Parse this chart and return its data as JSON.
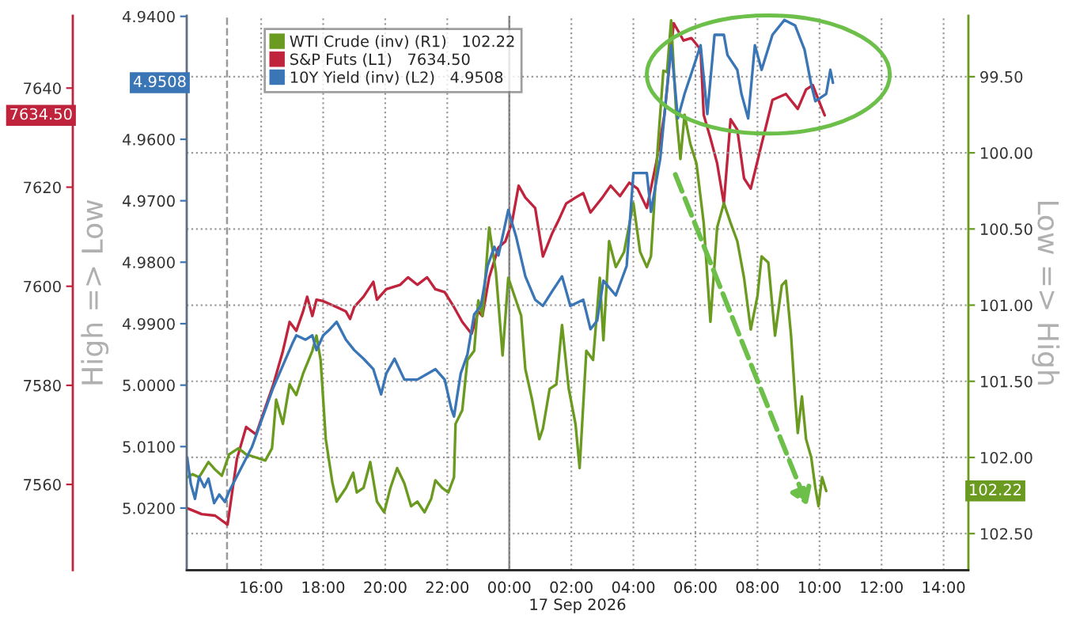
{
  "chart_data": {
    "type": "line",
    "xlabel": "17 Sep 2026",
    "y2label": "Low => High",
    "y3label": "High => Low",
    "xlim": [
      "2026-09-16T13:36",
      "2026-09-17T14:48"
    ],
    "xticks": [
      {
        "value": "2026-09-16T16:00",
        "label": "16:00"
      },
      {
        "value": "2026-09-16T18:00",
        "label": "18:00"
      },
      {
        "value": "2026-09-16T20:00",
        "label": "20:00"
      },
      {
        "value": "2026-09-16T22:00",
        "label": "22:00"
      },
      {
        "value": "2026-09-17T00:00",
        "label": "00:00"
      },
      {
        "value": "2026-09-17T02:00",
        "label": "02:00"
      },
      {
        "value": "2026-09-17T04:00",
        "label": "04:00"
      },
      {
        "value": "2026-09-17T06:00",
        "label": "06:00"
      },
      {
        "value": "2026-09-17T08:00",
        "label": "08:00"
      },
      {
        "value": "2026-09-17T10:00",
        "label": "10:00"
      },
      {
        "value": "2026-09-17T12:00",
        "label": "12:00"
      },
      {
        "value": "2026-09-17T14:00",
        "label": "14:00"
      }
    ],
    "ylim": [
      7542.7,
      7654.6
    ],
    "yticks": [
      7560,
      7580,
      7600,
      7620,
      7640
    ],
    "y2lim": [
      102.74,
      99.1
    ],
    "y2ticks": [
      {
        "value": 99.5,
        "label": "99.50"
      },
      {
        "value": 100,
        "label": "100.00"
      },
      {
        "value": 100.5,
        "label": "100.50"
      },
      {
        "value": 101,
        "label": "101.00"
      },
      {
        "value": 101.5,
        "label": "101.50"
      },
      {
        "value": 102,
        "label": "102.00"
      },
      {
        "value": 102.5,
        "label": "102.50"
      }
    ],
    "y3lim": [
      5.0301,
      4.9399
    ],
    "y3ticks": [
      {
        "value": 4.94,
        "label": "4.9400"
      },
      {
        "value": 4.96,
        "label": "4.9600"
      },
      {
        "value": 4.97,
        "label": "4.9700"
      },
      {
        "value": 4.98,
        "label": "4.9800"
      },
      {
        "value": 4.99,
        "label": "4.9900"
      },
      {
        "value": 5.0,
        "label": "5.0000"
      },
      {
        "value": 5.01,
        "label": "5.0100"
      },
      {
        "value": 5.02,
        "label": "5.0200"
      }
    ],
    "grid": true,
    "legend": "top left",
    "annotations": [
      "102.22",
      "7634.50",
      "4.9508"
    ],
    "ref_lines": [
      {
        "axis": "x",
        "value": "2026-09-17T00:00",
        "color": "#808080",
        "line_style": "solid"
      },
      {
        "axis": "x",
        "value": "2026-09-16T14:54",
        "color": "#9a9a9a",
        "line_style": "dashed"
      }
    ],
    "series": [
      {
        "name": "WTI Crude (inv) (R1)   102.22",
        "color": "#6a9a1f",
        "axis": "y2",
        "x": [
          "2026-09-16T13:37",
          "2026-09-16T13:47",
          "2026-09-16T14:00",
          "2026-09-16T14:18",
          "2026-09-16T14:31",
          "2026-09-16T14:44",
          "2026-09-16T14:58",
          "2026-09-16T15:16",
          "2026-09-16T15:31",
          "2026-09-16T15:50",
          "2026-09-16T16:08",
          "2026-09-16T16:21",
          "2026-09-16T16:29",
          "2026-09-16T16:42",
          "2026-09-16T16:55",
          "2026-09-16T17:08",
          "2026-09-16T17:21",
          "2026-09-16T17:39",
          "2026-09-16T17:47",
          "2026-09-16T17:55",
          "2026-09-16T18:05",
          "2026-09-16T18:18",
          "2026-09-16T18:26",
          "2026-09-16T18:44",
          "2026-09-16T18:58",
          "2026-09-16T19:05",
          "2026-09-16T19:18",
          "2026-09-16T19:31",
          "2026-09-16T19:44",
          "2026-09-16T19:58",
          "2026-09-16T20:10",
          "2026-09-16T20:23",
          "2026-09-16T20:37",
          "2026-09-16T20:50",
          "2026-09-16T21:02",
          "2026-09-16T21:16",
          "2026-09-16T21:29",
          "2026-09-16T21:37",
          "2026-09-16T21:50",
          "2026-09-16T22:02",
          "2026-09-16T22:13",
          "2026-09-16T22:16",
          "2026-09-16T22:29",
          "2026-09-16T22:39",
          "2026-09-16T22:52",
          "2026-09-16T23:00",
          "2026-09-16T23:08",
          "2026-09-16T23:21",
          "2026-09-16T23:34",
          "2026-09-16T23:47",
          "2026-09-16T23:58",
          "2026-09-17T00:10",
          "2026-09-17T00:23",
          "2026-09-17T00:31",
          "2026-09-17T00:44",
          "2026-09-17T00:58",
          "2026-09-17T01:05",
          "2026-09-17T01:18",
          "2026-09-17T01:31",
          "2026-09-17T01:42",
          "2026-09-17T01:55",
          "2026-09-17T02:08",
          "2026-09-17T02:16",
          "2026-09-17T02:29",
          "2026-09-17T02:42",
          "2026-09-17T02:55",
          "2026-09-17T03:02",
          "2026-09-17T03:13",
          "2026-09-17T03:26",
          "2026-09-17T03:42",
          "2026-09-17T04:00",
          "2026-09-17T04:13",
          "2026-09-17T04:26",
          "2026-09-17T04:34",
          "2026-09-17T04:47",
          "2026-09-17T04:58",
          "2026-09-17T05:05",
          "2026-09-17T05:13",
          "2026-09-17T05:23",
          "2026-09-17T05:31",
          "2026-09-17T05:39",
          "2026-09-17T05:50",
          "2026-09-17T06:02",
          "2026-09-17T06:16",
          "2026-09-17T06:29",
          "2026-09-17T06:42",
          "2026-09-17T06:55",
          "2026-09-17T07:08",
          "2026-09-17T07:21",
          "2026-09-17T07:34",
          "2026-09-17T07:47",
          "2026-09-17T08:00",
          "2026-09-17T08:08",
          "2026-09-17T08:21",
          "2026-09-17T08:34",
          "2026-09-17T08:47",
          "2026-09-17T08:55",
          "2026-09-17T09:05",
          "2026-09-17T09:13",
          "2026-09-17T09:18",
          "2026-09-17T09:26",
          "2026-09-17T09:34",
          "2026-09-17T09:44",
          "2026-09-17T09:52",
          "2026-09-17T09:58",
          "2026-09-17T10:05",
          "2026-09-17T10:13"
        ],
        "values": [
          102.13,
          102.11,
          102.13,
          102.03,
          102.08,
          102.12,
          101.98,
          101.94,
          101.98,
          102.0,
          102.02,
          101.94,
          101.62,
          101.78,
          101.52,
          101.59,
          101.45,
          101.3,
          101.2,
          101.36,
          101.88,
          102.17,
          102.29,
          102.2,
          102.1,
          102.23,
          102.2,
          102.03,
          102.29,
          102.36,
          102.2,
          102.07,
          102.17,
          102.32,
          102.29,
          102.36,
          102.27,
          102.15,
          102.2,
          102.23,
          102.13,
          101.78,
          101.69,
          101.36,
          101.3,
          100.97,
          101.07,
          100.49,
          100.78,
          101.33,
          100.82,
          100.94,
          101.07,
          101.42,
          101.62,
          101.88,
          101.81,
          101.55,
          101.52,
          101.13,
          101.55,
          101.78,
          102.07,
          101.3,
          101.36,
          100.82,
          101.23,
          100.58,
          100.75,
          100.65,
          100.33,
          100.65,
          100.75,
          100.68,
          99.97,
          99.46,
          99.47,
          99.13,
          99.75,
          100.04,
          99.75,
          99.94,
          100.07,
          100.46,
          101.11,
          100.49,
          100.33,
          100.46,
          100.58,
          100.82,
          101.16,
          100.94,
          100.68,
          100.72,
          101.2,
          100.87,
          100.84,
          101.2,
          101.62,
          101.84,
          101.6,
          101.88,
          102.0,
          102.2,
          102.32,
          102.13,
          102.22
        ]
      },
      {
        "name": "S&P Futs (L1)   7634.50",
        "color": "#c0243c",
        "axis": "y",
        "x": [
          "2026-09-16T13:37",
          "2026-09-16T14:05",
          "2026-09-16T14:31",
          "2026-09-16T14:55",
          "2026-09-16T15:13",
          "2026-09-16T15:31",
          "2026-09-16T15:50",
          "2026-09-16T16:23",
          "2026-09-16T16:42",
          "2026-09-16T16:55",
          "2026-09-16T17:08",
          "2026-09-16T17:21",
          "2026-09-16T17:29",
          "2026-09-16T17:39",
          "2026-09-16T17:47",
          "2026-09-16T18:00",
          "2026-09-16T18:26",
          "2026-09-16T18:44",
          "2026-09-16T18:52",
          "2026-09-16T19:00",
          "2026-09-16T19:18",
          "2026-09-16T19:37",
          "2026-09-16T19:44",
          "2026-09-16T20:02",
          "2026-09-16T20:29",
          "2026-09-16T20:44",
          "2026-09-16T21:02",
          "2026-09-16T21:21",
          "2026-09-16T21:37",
          "2026-09-16T21:55",
          "2026-09-16T22:13",
          "2026-09-16T22:29",
          "2026-09-16T22:47",
          "2026-09-16T23:00",
          "2026-09-16T23:08",
          "2026-09-16T23:21",
          "2026-09-16T23:39",
          "2026-09-16T23:52",
          "2026-09-17T00:05",
          "2026-09-17T00:18",
          "2026-09-17T00:31",
          "2026-09-17T00:50",
          "2026-09-17T01:05",
          "2026-09-17T01:23",
          "2026-09-17T01:37",
          "2026-09-17T01:50",
          "2026-09-17T02:08",
          "2026-09-17T02:23",
          "2026-09-17T02:37",
          "2026-09-17T03:00",
          "2026-09-17T03:16",
          "2026-09-17T03:34",
          "2026-09-17T03:52",
          "2026-09-17T04:08",
          "2026-09-17T04:26",
          "2026-09-17T04:44",
          "2026-09-17T05:00",
          "2026-09-17T05:18",
          "2026-09-17T05:37",
          "2026-09-17T05:52",
          "2026-09-17T06:10",
          "2026-09-17T06:16",
          "2026-09-17T06:29",
          "2026-09-17T06:42",
          "2026-09-17T06:55",
          "2026-09-17T07:08",
          "2026-09-17T07:21",
          "2026-09-17T07:34",
          "2026-09-17T07:47",
          "2026-09-17T08:08",
          "2026-09-17T08:29",
          "2026-09-17T08:55",
          "2026-09-17T09:18",
          "2026-09-17T09:34",
          "2026-09-17T09:47",
          "2026-09-17T10:05",
          "2026-09-17T10:10"
        ],
        "values": [
          7555.2,
          7554.0,
          7553.7,
          7551.9,
          7565.1,
          7571.6,
          7570.1,
          7580.0,
          7586.9,
          7592.8,
          7591.0,
          7594.9,
          7597.9,
          7594.0,
          7597.3,
          7597.0,
          7595.8,
          7594.9,
          7593.4,
          7595.8,
          7597.9,
          7600.9,
          7597.3,
          7599.4,
          7600.3,
          7601.8,
          7600.3,
          7601.8,
          7599.4,
          7598.8,
          7595.8,
          7592.8,
          7590.4,
          7594.9,
          7594.0,
          7601.8,
          7607.8,
          7609.0,
          7612.8,
          7620.3,
          7617.9,
          7615.8,
          7606.0,
          7610.7,
          7613.7,
          7616.7,
          7617.9,
          7618.8,
          7614.9,
          7617.9,
          7620.3,
          7618.2,
          7620.9,
          7619.7,
          7615.8,
          7624.8,
          7634.6,
          7653.1,
          7649.6,
          7650.1,
          7647.8,
          7634.6,
          7629.9,
          7624.8,
          7616.7,
          7633.7,
          7631.6,
          7621.8,
          7619.7,
          7628.7,
          7637.6,
          7638.8,
          7635.8,
          7639.7,
          7640.6,
          7635.8,
          7634.5
        ]
      },
      {
        "name": "10Y Yield (inv) (L2)   4.9508",
        "color": "#3a75b5",
        "axis": "y3",
        "x": [
          "2026-09-16T13:37",
          "2026-09-16T13:44",
          "2026-09-16T13:52",
          "2026-09-16T14:00",
          "2026-09-16T14:10",
          "2026-09-16T14:18",
          "2026-09-16T14:29",
          "2026-09-16T14:39",
          "2026-09-16T14:50",
          "2026-09-16T14:58",
          "2026-09-16T15:42",
          "2026-09-16T16:23",
          "2026-09-16T17:00",
          "2026-09-16T17:08",
          "2026-09-16T17:26",
          "2026-09-16T17:39",
          "2026-09-16T17:47",
          "2026-09-16T18:00",
          "2026-09-16T18:13",
          "2026-09-16T18:26",
          "2026-09-16T18:44",
          "2026-09-16T19:00",
          "2026-09-16T19:18",
          "2026-09-16T19:37",
          "2026-09-16T19:52",
          "2026-09-16T20:02",
          "2026-09-16T20:18",
          "2026-09-16T20:37",
          "2026-09-16T21:02",
          "2026-09-16T21:37",
          "2026-09-16T21:55",
          "2026-09-16T22:08",
          "2026-09-16T22:13",
          "2026-09-16T22:26",
          "2026-09-16T22:39",
          "2026-09-16T22:52",
          "2026-09-16T23:05",
          "2026-09-16T23:18",
          "2026-09-16T23:31",
          "2026-09-16T23:39",
          "2026-09-16T23:58",
          "2026-09-17T00:13",
          "2026-09-17T00:31",
          "2026-09-17T00:50",
          "2026-09-17T01:05",
          "2026-09-17T01:23",
          "2026-09-17T01:42",
          "2026-09-17T01:58",
          "2026-09-17T02:23",
          "2026-09-17T02:37",
          "2026-09-17T02:50",
          "2026-09-17T03:02",
          "2026-09-17T03:26",
          "2026-09-17T03:47",
          "2026-09-17T04:00",
          "2026-09-17T04:26",
          "2026-09-17T04:34",
          "2026-09-17T04:52",
          "2026-09-17T05:13",
          "2026-09-17T05:26",
          "2026-09-17T05:39",
          "2026-09-17T05:58",
          "2026-09-17T06:10",
          "2026-09-17T06:23",
          "2026-09-17T06:37",
          "2026-09-17T06:55",
          "2026-09-17T07:02",
          "2026-09-17T07:21",
          "2026-09-17T07:29",
          "2026-09-17T07:42",
          "2026-09-17T07:55",
          "2026-09-17T08:08",
          "2026-09-17T08:29",
          "2026-09-17T08:52",
          "2026-09-17T09:13",
          "2026-09-17T09:31",
          "2026-09-17T09:44",
          "2026-09-17T09:52",
          "2026-09-17T10:13",
          "2026-09-17T10:21",
          "2026-09-17T10:26"
        ],
        "values": [
          5.0118,
          5.0161,
          5.0185,
          5.0149,
          5.0166,
          5.0152,
          5.0192,
          5.0178,
          5.019,
          5.0173,
          5.0101,
          5.0005,
          4.9933,
          4.9919,
          4.9926,
          4.9919,
          4.9943,
          4.9919,
          4.9909,
          4.9897,
          4.9926,
          4.9943,
          4.9957,
          4.9974,
          5.0015,
          4.9981,
          4.9957,
          4.9991,
          4.9991,
          4.9974,
          4.9991,
          5.0039,
          5.0051,
          4.9981,
          4.995,
          4.9885,
          4.9871,
          4.9806,
          4.9775,
          4.9789,
          4.9715,
          4.9758,
          4.9823,
          4.9861,
          4.9871,
          4.9847,
          4.9823,
          4.9871,
          4.9861,
          4.9909,
          4.9895,
          4.983,
          4.9854,
          4.9806,
          4.9655,
          4.9655,
          4.9718,
          4.9631,
          4.9447,
          4.9566,
          4.9526,
          4.9478,
          4.9447,
          4.9559,
          4.943,
          4.943,
          4.9463,
          4.9487,
          4.9526,
          4.9566,
          4.9447,
          4.9487,
          4.943,
          4.9406,
          4.9415,
          4.9454,
          4.9511,
          4.9538,
          4.9526,
          4.9487,
          4.9508
        ]
      }
    ]
  }
}
